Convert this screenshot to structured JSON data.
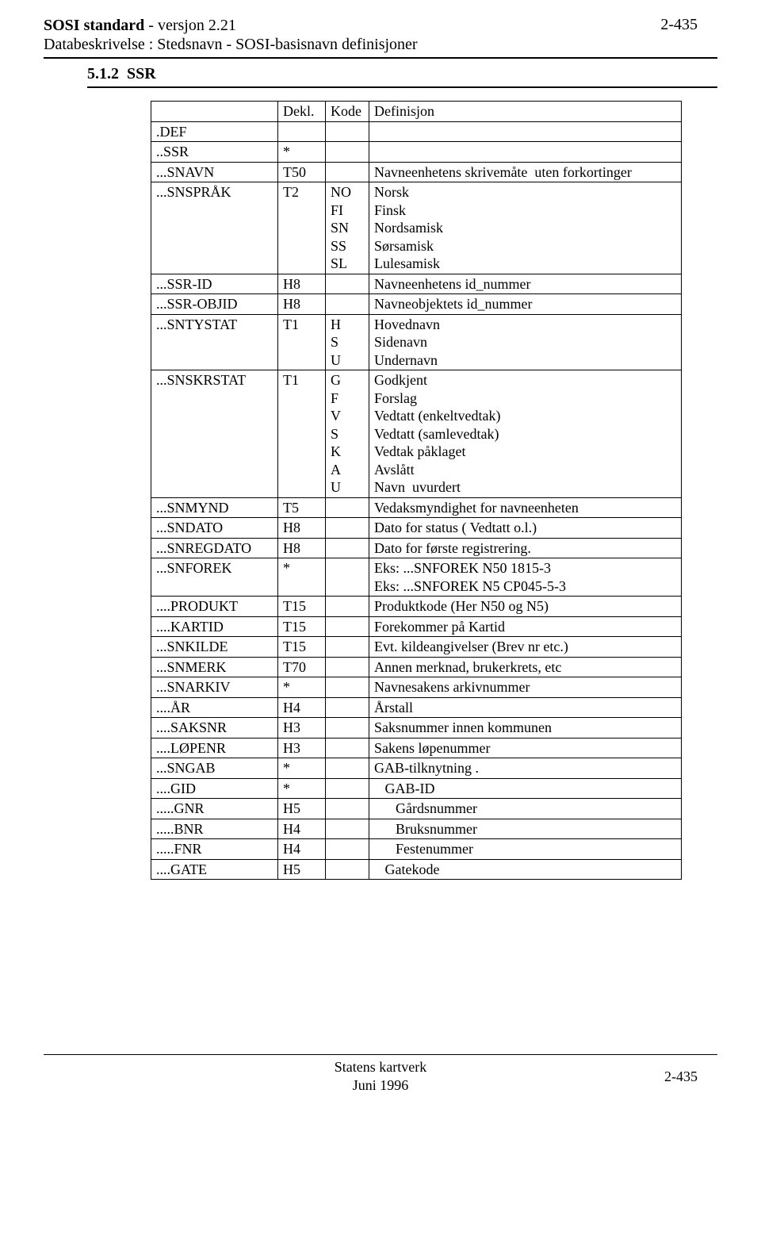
{
  "header": {
    "title_bold": "SOSI standard",
    "title_rest": " - versjon 2.21",
    "page_right": "2-435",
    "subtitle": "Databeskrivelse :  Stedsnavn - SOSI-basisnavn definisjoner"
  },
  "section": {
    "number": "5.1.2",
    "title": "SSR"
  },
  "table": {
    "head": {
      "c1": "",
      "c2": "Dekl.",
      "c3": "Kode",
      "c4": "Definisjon"
    },
    "rows": [
      {
        "c1": ".DEF",
        "c2": "",
        "c3": "",
        "c4": ""
      },
      {
        "c1": "..SSR",
        "c2": "*",
        "c3": "",
        "c4": ""
      },
      {
        "c1": "...SNAVN",
        "c2": "T50",
        "c3": "",
        "c4": "Navneenhetens skrivemåte  uten forkortinger"
      },
      {
        "c1": "...SNSPRÅK",
        "c2": "T2",
        "c3": "NO\nFI\nSN\nSS\nSL",
        "c4": "Norsk\nFinsk\nNordsamisk\nSørsamisk\nLulesamisk"
      },
      {
        "c1": "...SSR-ID",
        "c2": "H8",
        "c3": "",
        "c4": "Navneenhetens id_nummer"
      },
      {
        "c1": "...SSR-OBJID",
        "c2": "H8",
        "c3": "",
        "c4": "Navneobjektets id_nummer"
      },
      {
        "c1": "...SNTYSTAT",
        "c2": "T1",
        "c3": "H\nS\nU",
        "c4": "Hovednavn\nSidenavn\nUndernavn"
      },
      {
        "c1": "...SNSKRSTAT",
        "c2": "T1",
        "c3": "G\nF\nV\nS\nK\nA\nU",
        "c4": "Godkjent\nForslag\nVedtatt (enkeltvedtak)\nVedtatt (samlevedtak)\nVedtak påklaget\nAvslått\nNavn  uvurdert"
      },
      {
        "c1": "...SNMYND",
        "c2": "T5",
        "c3": "",
        "c4": "Vedaksmyndighet for navneenheten"
      },
      {
        "c1": "...SNDATO",
        "c2": "H8",
        "c3": "",
        "c4": "Dato for status ( Vedtatt o.l.)"
      },
      {
        "c1": "...SNREGDATO",
        "c2": "H8",
        "c3": "",
        "c4": "Dato for første registrering."
      },
      {
        "c1": "...SNFOREK",
        "c2": "*",
        "c3": "",
        "c4": "Eks: ...SNFOREK N50 1815-3\nEks: ...SNFOREK N5 CP045-5-3"
      },
      {
        "c1": "....PRODUKT",
        "c2": "T15",
        "c3": "",
        "c4": "Produktkode (Her N50 og N5)"
      },
      {
        "c1": "....KARTID",
        "c2": "T15",
        "c3": "",
        "c4": "Forekommer på Kartid"
      },
      {
        "c1": "...SNKILDE",
        "c2": "T15",
        "c3": "",
        "c4": "Evt. kildeangivelser (Brev nr etc.)"
      },
      {
        "c1": "...SNMERK",
        "c2": "T70",
        "c3": "",
        "c4": "Annen merknad, brukerkrets, etc"
      },
      {
        "c1": "...SNARKIV",
        "c2": "*",
        "c3": "",
        "c4": "Navnesakens arkivnummer"
      },
      {
        "c1": "....ÅR",
        "c2": "H4",
        "c3": "",
        "c4": "Årstall"
      },
      {
        "c1": "....SAKSNR",
        "c2": "H3",
        "c3": "",
        "c4": "Saksnummer innen kommunen"
      },
      {
        "c1": "....LØPENR",
        "c2": "H3",
        "c3": "",
        "c4": "Sakens løpenummer"
      },
      {
        "c1": "...SNGAB",
        "c2": "*",
        "c3": "",
        "c4": "GAB-tilknytning ."
      },
      {
        "c1": "....GID",
        "c2": "*",
        "c3": "",
        "c4": "   GAB-ID"
      },
      {
        "c1": ".....GNR",
        "c2": "H5",
        "c3": "",
        "c4": "      Gårdsnummer"
      },
      {
        "c1": ".....BNR",
        "c2": "H4",
        "c3": "",
        "c4": "      Bruksnummer"
      },
      {
        "c1": ".....FNR",
        "c2": "H4",
        "c3": "",
        "c4": "      Festenummer"
      },
      {
        "c1": "....GATE",
        "c2": "H5",
        "c3": "",
        "c4": "   Gatekode"
      }
    ]
  },
  "footer": {
    "org": "Statens kartverk",
    "date": "Juni  1996",
    "page": "2-435"
  }
}
